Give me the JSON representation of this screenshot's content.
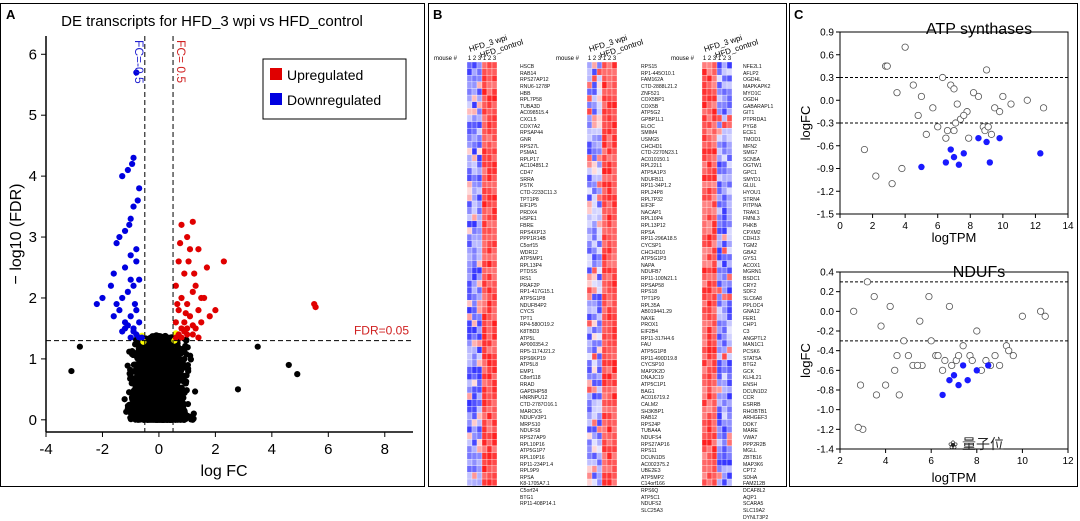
{
  "panel_labels": {
    "a": "A",
    "b": "B",
    "c": "C"
  },
  "panel_a": {
    "title": "DE transcripts for HFD_3 wpi vs HFD_control",
    "legend": {
      "up": "Upregulated",
      "down": "Downregulated"
    },
    "fc_neg_label": "FC=-0.5",
    "fc_pos_label": "FC= 0.5",
    "fdr_label": "FDR=0.05",
    "colors": {
      "up": "#e00000",
      "down": "#0000e0",
      "ns": "#000000",
      "border": "#ffff00"
    }
  },
  "panel_b": {
    "heatmap_cols": [
      "1",
      "2",
      "3",
      "1",
      "2",
      "3"
    ],
    "mouse_label": "mouse #",
    "group_labels": [
      "HFD_3 wpi",
      "HFD_control"
    ],
    "genes_1": [
      "HSCB",
      "RAB14",
      "RPS27AP12",
      "RNU6-1278P",
      "HBB",
      "RPL7P58",
      "TUBA3D",
      "AC098515.4",
      "CXCL5",
      "COX7A2",
      "RPSAP44",
      "GNR",
      "RPS27L",
      "PSMA1",
      "RPLP17",
      "AC104851.2",
      "CD47",
      "SRRA",
      "PSTK",
      "CTD-2233C11.3",
      "TPT1P8",
      "EIF1P5",
      "PRDX4",
      "HSPE1",
      "FBRE",
      "RPS4XP13",
      "PPP1R14B",
      "C5orf15",
      "WDR12",
      "ATP5MP1",
      "RPL13P4",
      "PTDSS",
      "IRS1",
      "PRAF2P",
      "RP1-417G15.1",
      "ATP5G1P8",
      "NDUFB4P2",
      "CYCS",
      "TPT1",
      "RP4-580O19.2",
      "K8TBD3",
      "ATP5L",
      "AP000354.2",
      "RP5-1174J21.2",
      "RPS6KP19",
      "ATP5L8",
      "EMP1",
      "C8orf118",
      "RRAD",
      "GAPDHP58",
      "HNRNPU12",
      "CTD-2787O16.1",
      "MARCKS",
      "NDUFV3P1",
      "MRPS10",
      "NDUFS8",
      "RPS27AP9",
      "RPL10P16",
      "ATP5G1P7",
      "RPL10P16",
      "RP11-234P1.4",
      "RPL9P9",
      "RPSA",
      "K8-1705A7.1",
      "C5orf24",
      "BTG1",
      "RP11-408P14.1"
    ],
    "genes_2": [
      "RPS15",
      "RP1-445O10.1",
      "FAM162A",
      "CTD-2888L21.2",
      "ZNF521",
      "COX5BP1",
      "COX5B",
      "ATP5G2",
      "GPBP1L1",
      "ELOC",
      "SMIM4",
      "USMG5",
      "CHCHD1",
      "CTD-2270N23.1",
      "AC010150.1",
      "RPL22L1",
      "ATP5A1P3",
      "NDUFB11",
      "RP11-34P1.2",
      "RPL24P8",
      "RPL7P32",
      "EIF3F",
      "NACAP1",
      "RPL10P4",
      "RPL13P12",
      "RPSA",
      "RP11-296A18.5",
      "CYCSP1",
      "CHCHD10",
      "ATP5G1P3",
      "NAPA",
      "NDUFB7",
      "RP11-100N21.1",
      "RPSAP58",
      "RPS18",
      "TPT1P9",
      "RPL35A",
      "AB019441.29",
      "NAXE",
      "PROX1",
      "EIF2B4",
      "RP11-317H4.6",
      "FAU",
      "ATP5G1P8",
      "RP11-490D19.8",
      "CYCSP10",
      "MAP2K2D",
      "DNAJC19",
      "ATP5C1P1",
      "BAG1",
      "AC016719.2",
      "CALM2",
      "SH3KBP1",
      "RAB12",
      "RPS24P",
      "TUBA4A",
      "NDUFS4",
      "RPS27AP16",
      "RPS11",
      "DCUN1D5",
      "AC002375.2",
      "UBE2E3",
      "ATP5MP2",
      "C14orf166",
      "RPS6Q",
      "ATP5C1",
      "NDUFS2",
      "SLC25A3"
    ],
    "genes_3": [
      "NFE2L1",
      "AFLP2",
      "OGDHL",
      "MAPKAPK2",
      "MYO1C",
      "OGDH",
      "GABARAPL1",
      "GIT1",
      "PTPRDA1",
      "PYG8",
      "ECE1",
      "TMOD1",
      "MFN2",
      "SMG7",
      "SCN5A",
      "OGTW1",
      "GPC1",
      "SMYD1",
      "GLUL",
      "HYOU1",
      "STRN4",
      "PITPNA",
      "TRAK1",
      "FMNL3",
      "PHKB",
      "CPXM2",
      "CDH13",
      "TGM2",
      "GBA2",
      "GYS1",
      "ACOX1",
      "MGRN1",
      "BSDC1",
      "CRY2",
      "SDF2",
      "SLC6A8",
      "PPLOC4",
      "GNA12",
      "FER1",
      "CHP1",
      "C3",
      "ANGPTL2",
      "MAN1C1",
      "PCSK6",
      "STAT5A",
      "BTG2",
      "GCK",
      "KLHL21",
      "ENSH",
      "DCUN1D2",
      "CCR",
      "ESRRB",
      "RHOBTB1",
      "ARHGEF3",
      "DOK7",
      "MARE",
      "VWA7",
      "PPP2R2B",
      "MGLL",
      "ZBTB16",
      "MAP3K6",
      "CPT2",
      "SDHA",
      "FAM212B",
      "DCAF8L2",
      "AQP1",
      "SCARA5",
      "SLC19A2",
      "DYNLT3P2"
    ]
  },
  "panel_c": {
    "chart_data": [
      {
        "type": "scatter",
        "title": "ATP synthases",
        "xlabel": "logTPM",
        "ylabel": "logFC",
        "xlim": [
          0,
          14
        ],
        "ylim": [
          -1.5,
          0.9
        ],
        "xticks": [
          "0",
          "2",
          "4",
          "6",
          "8",
          "10",
          "12",
          "14"
        ],
        "yticks": [
          "0.9",
          "0.6",
          "0.3",
          "0.0",
          "-0.3",
          "-0.6",
          "-0.9",
          "-1.2",
          "-1.5"
        ],
        "thresholds": [
          0.3,
          -0.3
        ],
        "series": [
          {
            "name": "not significant",
            "style": "open",
            "x": [
              2.8,
              3.5,
              4.0,
              4.5,
              5.0,
              5.7,
              6.3,
              6.8,
              7.0,
              7.2,
              7.4,
              7.8,
              8.5,
              9.0,
              9.5,
              10.0,
              11.5,
              12.5,
              3.2,
              3.8,
              4.8,
              6.0,
              6.6,
              7.1,
              7.6,
              8.2,
              8.8,
              9.3,
              9.8,
              1.5,
              2.9,
              5.3,
              6.5,
              7.0,
              7.9,
              8.9,
              9.1,
              10.5,
              2.2
            ],
            "y": [
              0.45,
              0.1,
              0.7,
              0.2,
              0.05,
              -0.1,
              0.3,
              0.2,
              0.15,
              -0.05,
              -0.25,
              -0.15,
              0.05,
              0.4,
              -0.1,
              0.05,
              0.0,
              -0.1,
              -1.1,
              -0.9,
              -0.2,
              -0.35,
              -0.4,
              -0.3,
              -0.2,
              0.1,
              -0.35,
              -0.45,
              -0.15,
              -0.65,
              0.45,
              -0.45,
              -0.5,
              -0.4,
              -0.5,
              -0.4,
              -0.35,
              -0.05,
              -1.0
            ]
          },
          {
            "name": "significant",
            "style": "filled",
            "x": [
              5.0,
              6.5,
              6.8,
              7.0,
              7.3,
              7.6,
              8.5,
              9.0,
              9.2,
              9.8,
              12.3
            ],
            "y": [
              -0.88,
              -0.82,
              -0.65,
              -0.75,
              -0.85,
              -0.7,
              -0.5,
              -0.55,
              -0.82,
              -0.5,
              -0.7
            ]
          }
        ]
      },
      {
        "type": "scatter",
        "title": "NDUFs",
        "xlabel": "logTPM",
        "ylabel": "logFC",
        "xlim": [
          2,
          12
        ],
        "ylim": [
          -1.4,
          0.4
        ],
        "xticks": [
          "2",
          "4",
          "6",
          "8",
          "10",
          "12"
        ],
        "yticks": [
          "0.4",
          "0.2",
          "0.0",
          "-0.2",
          "-0.4",
          "-0.6",
          "-0.8",
          "-1.0",
          "-1.2",
          "-1.4"
        ],
        "thresholds": [
          0.3,
          -0.3
        ],
        "series": [
          {
            "name": "not significant",
            "style": "open",
            "x": [
              2.9,
              3.2,
              3.5,
              3.8,
              4.2,
              4.5,
              4.8,
              5.2,
              5.5,
              5.9,
              6.2,
              6.5,
              6.8,
              7.1,
              7.4,
              7.7,
              8.0,
              8.4,
              8.8,
              9.0,
              9.3,
              9.6,
              10.0,
              10.8,
              11.0,
              3.0,
              3.6,
              4.0,
              4.4,
              5.0,
              5.6,
              6.0,
              6.3,
              6.6,
              6.9,
              7.2,
              7.8,
              8.2,
              8.6,
              9.4,
              2.8,
              2.6,
              4.6,
              5.4
            ],
            "y": [
              -0.75,
              0.3,
              0.15,
              -0.15,
              0.05,
              -0.45,
              -0.3,
              -0.55,
              -0.1,
              0.15,
              -0.45,
              -0.6,
              0.05,
              -0.5,
              -0.35,
              -0.45,
              -0.2,
              -0.5,
              -0.45,
              -0.55,
              -0.35,
              -0.45,
              -0.05,
              0.0,
              -0.05,
              -1.2,
              -0.85,
              -0.75,
              -0.6,
              -0.45,
              -0.55,
              -0.3,
              -0.45,
              -0.5,
              -0.55,
              -0.45,
              -0.5,
              -0.6,
              -0.55,
              -0.4,
              -1.18,
              0.0,
              -0.85,
              -0.55
            ]
          },
          {
            "name": "significant",
            "style": "filled",
            "x": [
              6.5,
              6.8,
              7.0,
              7.2,
              7.4,
              7.6,
              8.0,
              8.5
            ],
            "y": [
              -0.85,
              -0.7,
              -0.65,
              -0.75,
              -0.55,
              -0.7,
              -0.6,
              -0.55
            ]
          }
        ]
      }
    ]
  },
  "watermark": {
    "text": "量子位"
  },
  "chart_data": {
    "type": "scatter",
    "title": "DE transcripts for HFD_3 wpi vs HFD_control",
    "xlabel": "log FC",
    "ylabel": "− log10 (FDR)",
    "xlim": [
      -4,
      9
    ],
    "ylim": [
      -0.2,
      6.3
    ],
    "xticks": [
      "-4",
      "-2",
      "0",
      "2",
      "4",
      "6",
      "8"
    ],
    "yticks": [
      "0",
      "1",
      "2",
      "3",
      "4",
      "5",
      "6"
    ],
    "thresholds": {
      "fc": [
        -0.5,
        0.5
      ],
      "fdr": 1.3
    },
    "series": [
      {
        "name": "Upregulated",
        "color": "#e00000",
        "x": [
          0.8,
          1.0,
          1.2,
          1.4,
          1.7,
          2.3,
          0.7,
          0.9,
          1.1,
          1.3,
          1.5,
          0.6,
          0.8,
          1.0,
          1.2,
          1.4,
          1.6,
          1.8,
          0.7,
          0.9,
          1.1,
          1.3,
          0.6,
          0.8,
          1.0,
          1.2,
          1.5,
          2.0,
          0.7,
          0.9,
          0.6,
          0.8,
          1.0,
          1.2,
          1.4,
          5.5,
          5.55,
          0.75,
          1.05,
          1.25,
          0.65,
          0.95
        ],
        "y": [
          3.2,
          3.0,
          3.25,
          2.8,
          2.5,
          2.6,
          2.6,
          2.4,
          2.8,
          2.2,
          2.0,
          2.2,
          2.0,
          1.9,
          2.1,
          1.8,
          2.0,
          1.7,
          1.8,
          1.6,
          1.7,
          1.5,
          1.6,
          1.5,
          1.4,
          1.55,
          1.6,
          1.8,
          1.4,
          1.45,
          1.35,
          1.35,
          1.5,
          1.4,
          1.35,
          1.9,
          1.85,
          2.9,
          2.6,
          2.4,
          1.9,
          1.75
        ]
      },
      {
        "name": "Downregulated",
        "color": "#0000e0",
        "x": [
          -0.8,
          -0.9,
          -1.1,
          -1.3,
          -0.7,
          -0.9,
          -1.0,
          -1.2,
          -1.4,
          -1.5,
          -0.8,
          -1.0,
          -1.2,
          -1.6,
          -0.7,
          -0.9,
          -1.1,
          -1.3,
          -1.5,
          -1.7,
          -2.0,
          -2.2,
          -0.8,
          -1.0,
          -1.2,
          -1.4,
          -0.7,
          -0.9,
          -1.1,
          -1.3,
          -1.6,
          -0.8,
          -1.0,
          -1.2,
          -0.7,
          -0.9,
          -0.6,
          -0.8,
          -1.0,
          -0.95,
          -0.75,
          -1.05,
          -0.85
        ],
        "y": [
          5.7,
          4.3,
          4.1,
          4.0,
          3.8,
          3.5,
          3.3,
          3.1,
          3.0,
          2.9,
          2.8,
          2.7,
          2.5,
          2.4,
          2.3,
          2.2,
          2.1,
          2.0,
          1.9,
          2.2,
          2.0,
          1.9,
          1.8,
          1.7,
          1.6,
          1.8,
          1.6,
          1.5,
          1.55,
          1.45,
          1.7,
          1.4,
          1.35,
          1.5,
          1.35,
          1.45,
          1.35,
          2.6,
          2.3,
          4.2,
          3.6,
          3.2,
          1.9
        ]
      },
      {
        "name": "Not significant",
        "color": "#000000",
        "x": [],
        "y": []
      }
    ]
  }
}
